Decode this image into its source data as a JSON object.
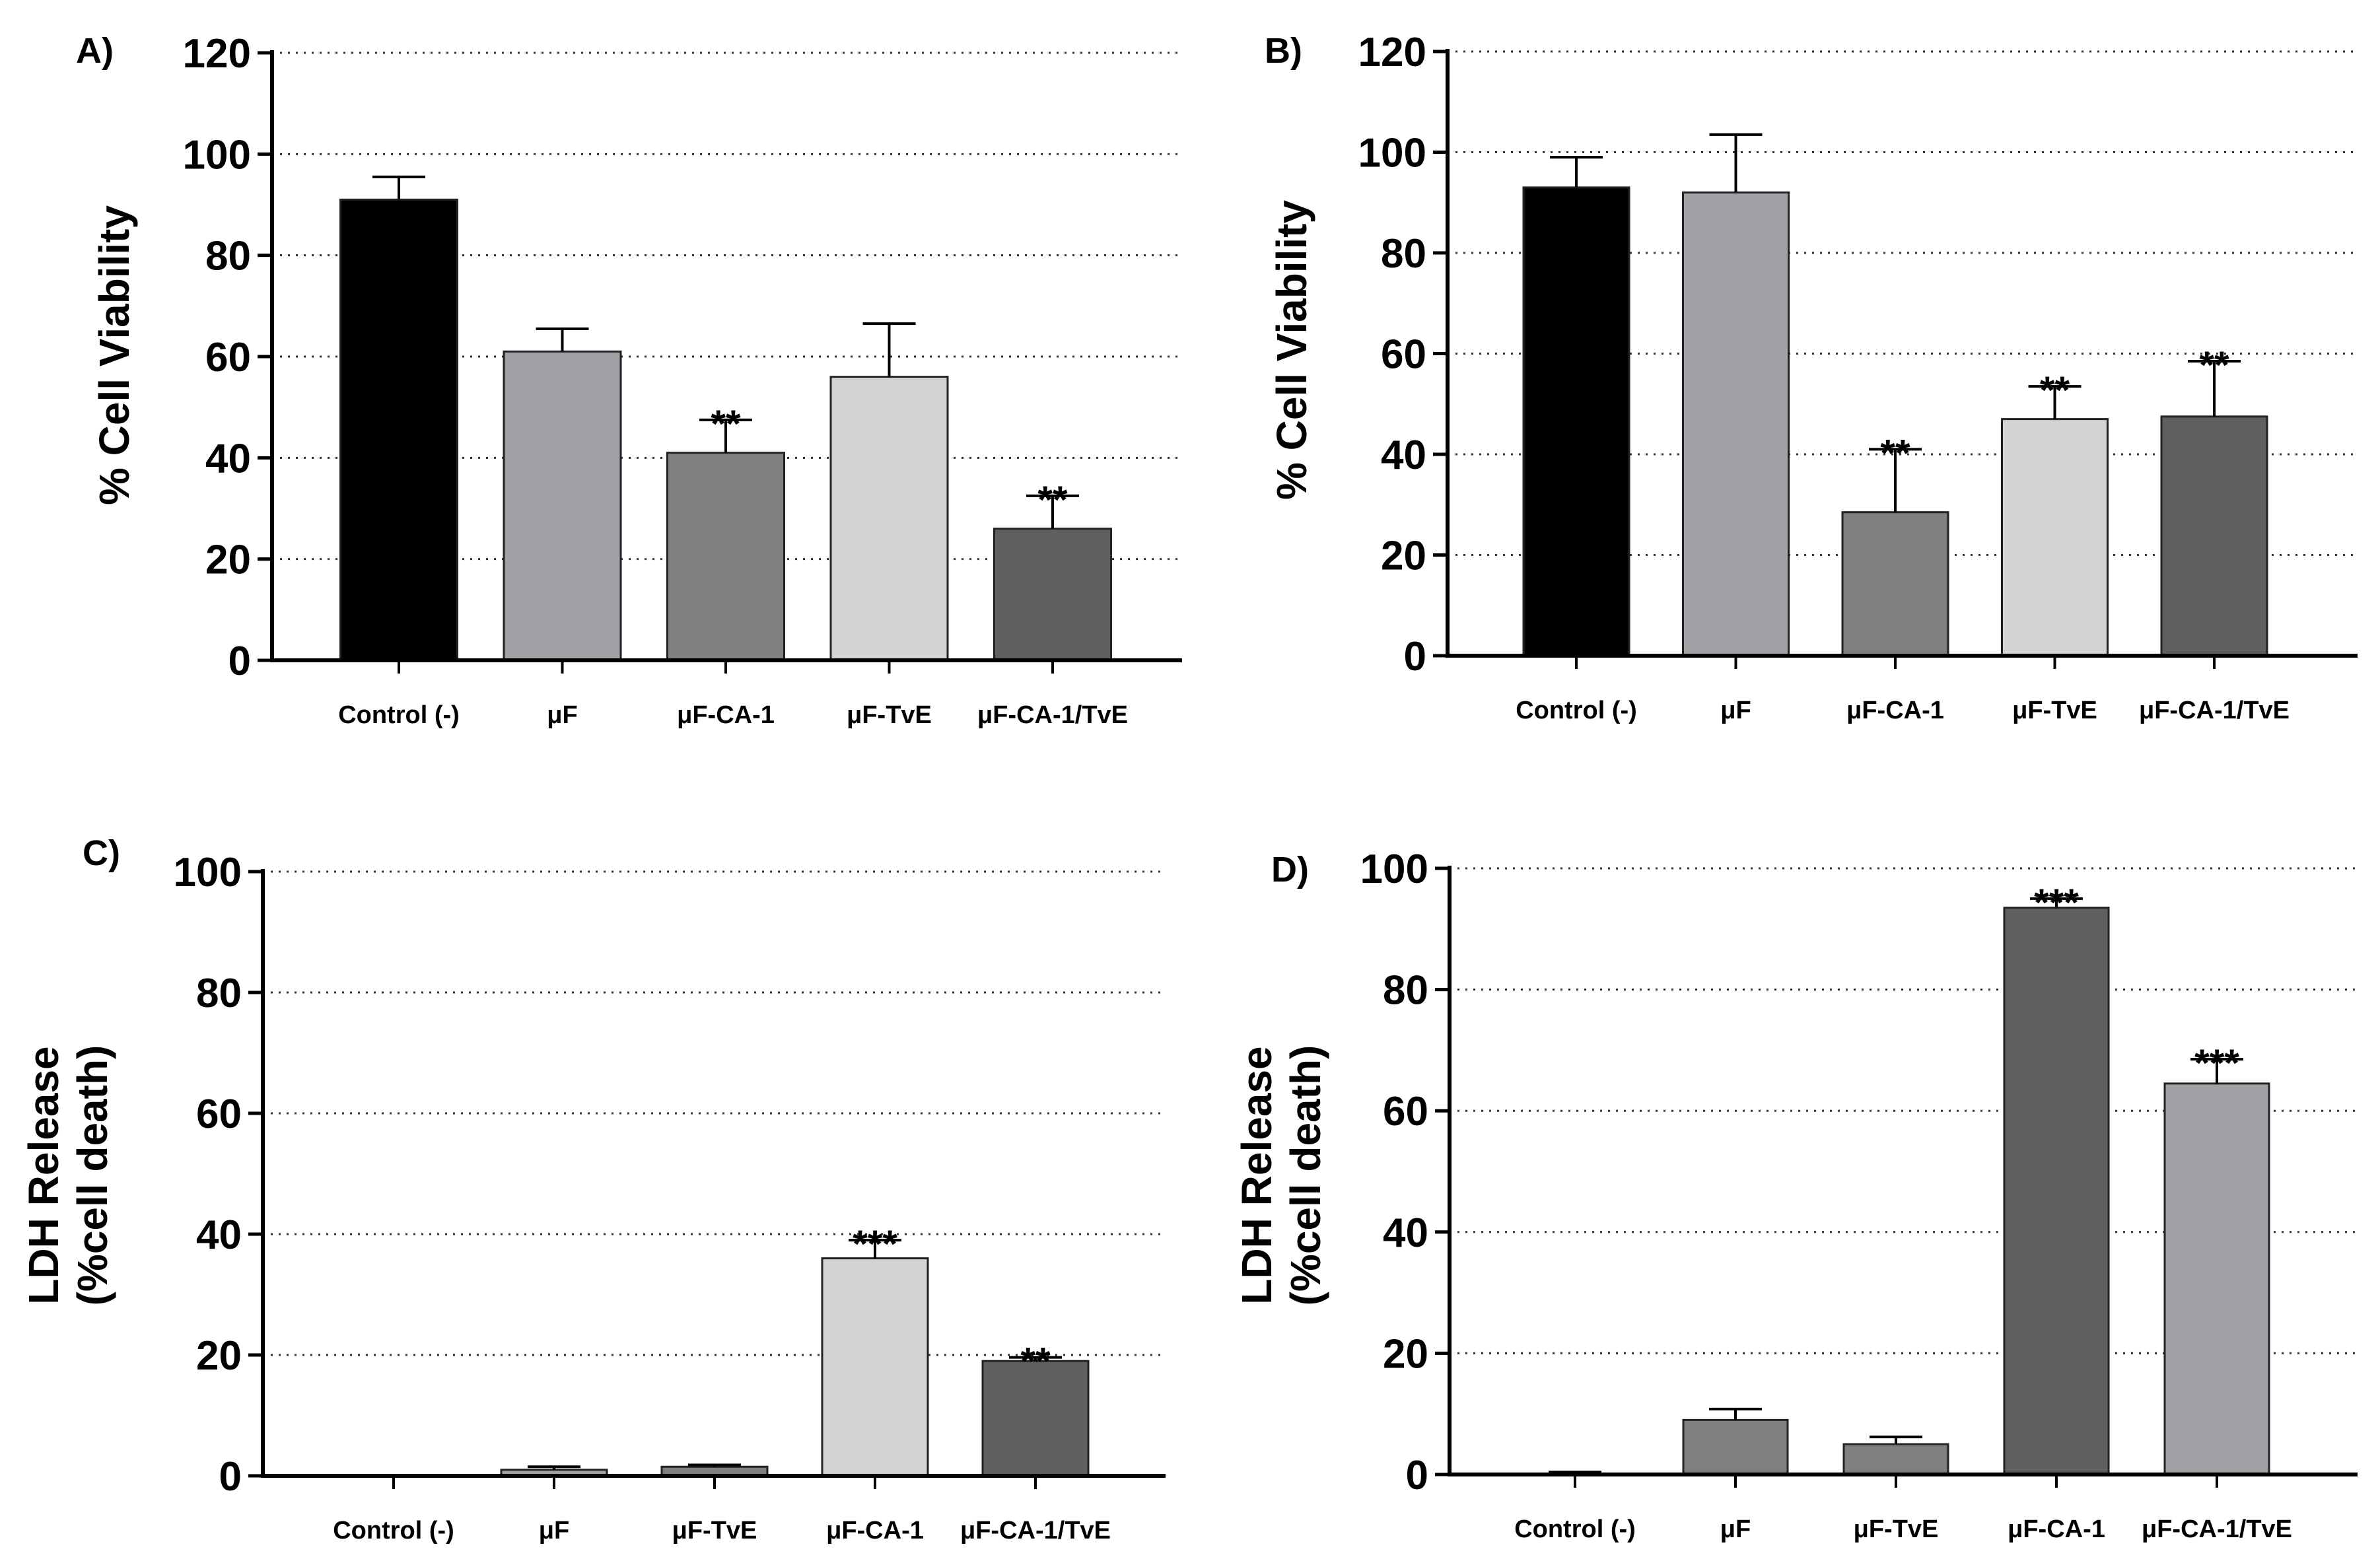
{
  "colors": {
    "black": "#000000",
    "mid_gray": "#a2a2a6",
    "dark_gray": "#808080",
    "light_gray": "#d3d3d3",
    "charcoal": "#606060",
    "bar_stroke": "#222222"
  },
  "chart_data": [
    {
      "type": "bar",
      "panel": "A)",
      "ylabel_lines": [
        "% Cell Viability"
      ],
      "ylim": [
        0,
        120
      ],
      "yticks": [
        "0",
        "20",
        "40",
        "60",
        "80",
        "100",
        "120"
      ],
      "grid": "horizontal dotted",
      "categories": [
        "Control (-)",
        "μF",
        "μF-CA-1",
        "μF-TvE",
        "μF-CA-1/TvE"
      ],
      "values": [
        91,
        61,
        41,
        56,
        26
      ],
      "errors": [
        4.5,
        4.5,
        6.5,
        10.5,
        6.5
      ],
      "colors": [
        "black",
        "mid_gray",
        "dark_gray",
        "light_gray",
        "charcoal"
      ],
      "annotations": [
        "",
        "",
        "**",
        "",
        "**"
      ]
    },
    {
      "type": "bar",
      "panel": "B)",
      "ylabel_lines": [
        "% Cell Viability"
      ],
      "ylim": [
        0,
        120
      ],
      "yticks": [
        "0",
        "20",
        "40",
        "60",
        "80",
        "100",
        "120"
      ],
      "grid": "horizontal dotted",
      "categories": [
        "Control (-)",
        "μF",
        "μF-CA-1",
        "μF-TvE",
        "μF-CA-1/TvE"
      ],
      "values": [
        93,
        92,
        28.5,
        47,
        47.5
      ],
      "errors": [
        6,
        11.5,
        12.5,
        6.5,
        11
      ],
      "colors": [
        "black",
        "mid_gray",
        "dark_gray",
        "light_gray",
        "charcoal"
      ],
      "annotations": [
        "",
        "",
        "**",
        "**",
        "**"
      ]
    },
    {
      "type": "bar",
      "panel": "C)",
      "ylabel_lines": [
        "LDH Release",
        "(%cell death)"
      ],
      "ylim": [
        0,
        100
      ],
      "yticks": [
        "0",
        "20",
        "40",
        "60",
        "80",
        "100"
      ],
      "grid": "horizontal dotted",
      "categories": [
        "Control (-)",
        "μF",
        "μF-TvE",
        "μF-CA-1",
        "μF-CA-1/TvE"
      ],
      "values": [
        0,
        1,
        1.5,
        36,
        19
      ],
      "errors": [
        0,
        0.5,
        0.3,
        3,
        0.6
      ],
      "colors": [
        "black",
        "mid_gray",
        "dark_gray",
        "light_gray",
        "charcoal"
      ],
      "annotations": [
        "",
        "",
        "",
        "***",
        "**"
      ]
    },
    {
      "type": "bar",
      "panel": "D)",
      "ylabel_lines": [
        "LDH Release",
        "(%cell death)"
      ],
      "ylim": [
        0,
        100
      ],
      "yticks": [
        "0",
        "20",
        "40",
        "60",
        "80",
        "100"
      ],
      "grid": "horizontal dotted",
      "categories": [
        "Control (-)",
        "μF",
        "μF-TvE",
        "μF-CA-1",
        "μF-CA-1/TvE"
      ],
      "values": [
        0,
        9,
        5,
        93.5,
        64.5
      ],
      "errors": [
        0.4,
        1.8,
        1.2,
        1.5,
        4
      ],
      "colors": [
        "black",
        "dark_gray",
        "dark_gray",
        "charcoal",
        "mid_gray"
      ],
      "annotations": [
        "",
        "",
        "",
        "***",
        "***"
      ]
    }
  ]
}
